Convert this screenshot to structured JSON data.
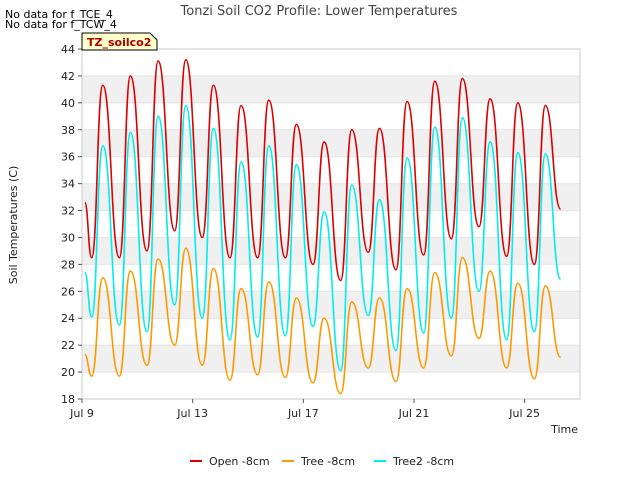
{
  "notes": [
    "No data for f_TCE_4",
    "No data for f_TCW_4"
  ],
  "badge": "TZ_soilco2",
  "chart_data": {
    "type": "line",
    "title": "Tonzi Soil CO2 Profile: Lower Temperatures",
    "xlabel": "Time",
    "ylabel": "Soil Temperatures (C)",
    "ylim": [
      18,
      44
    ],
    "xlim": [
      0,
      18
    ],
    "y_ticks": [
      18,
      20,
      22,
      24,
      26,
      28,
      30,
      32,
      34,
      36,
      38,
      40,
      42,
      44
    ],
    "x_ticks": [
      {
        "x": 0,
        "label": "Jul 9"
      },
      {
        "x": 4,
        "label": "Jul 13"
      },
      {
        "x": 8,
        "label": "Jul 17"
      },
      {
        "x": 12,
        "label": "Jul 21"
      },
      {
        "x": 16,
        "label": "Jul 25"
      }
    ],
    "grid": "horizontal bands",
    "legend_position": "bottom",
    "x": [
      0.1,
      0.35,
      0.75,
      1.35,
      1.75,
      2.35,
      2.75,
      3.35,
      3.75,
      4.35,
      4.75,
      5.35,
      5.75,
      6.35,
      6.75,
      7.35,
      7.75,
      8.35,
      8.75,
      9.35,
      9.75,
      10.35,
      10.75,
      11.35,
      11.75,
      12.35,
      12.75,
      13.35,
      13.75,
      14.35,
      14.75,
      15.35,
      15.75,
      16.35,
      16.75,
      17.3
    ],
    "series": [
      {
        "name": "Open -8cm",
        "color": "#dd0000",
        "values": [
          32.6,
          28.5,
          41.3,
          28.5,
          42.0,
          29.0,
          43.1,
          30.5,
          43.2,
          30.0,
          41.3,
          28.5,
          39.8,
          28.5,
          40.2,
          28.5,
          38.4,
          28.0,
          37.1,
          26.8,
          38.0,
          28.9,
          38.1,
          27.6,
          40.1,
          28.7,
          41.6,
          29.9,
          41.8,
          30.8,
          40.3,
          28.6,
          40.0,
          28.0,
          39.8,
          32.1
        ]
      },
      {
        "name": "Tree -8cm",
        "color": "#ff9900",
        "values": [
          21.3,
          19.7,
          27.0,
          19.7,
          27.5,
          20.5,
          28.4,
          22.0,
          29.2,
          20.5,
          27.7,
          19.4,
          26.2,
          19.8,
          26.7,
          19.6,
          25.5,
          19.2,
          24.0,
          18.4,
          25.2,
          20.3,
          25.5,
          19.3,
          26.2,
          20.3,
          27.4,
          21.2,
          28.5,
          22.5,
          27.5,
          20.3,
          26.6,
          19.5,
          26.4,
          21.1
        ]
      },
      {
        "name": "Tree2 -8cm",
        "color": "#00eeee",
        "values": [
          27.4,
          24.1,
          36.8,
          23.5,
          37.8,
          23.0,
          39.0,
          25.0,
          39.8,
          24.0,
          38.1,
          22.4,
          35.6,
          22.6,
          36.8,
          22.7,
          35.4,
          23.4,
          31.9,
          20.1,
          33.9,
          24.2,
          32.8,
          21.6,
          35.9,
          22.9,
          38.2,
          24.0,
          38.9,
          26.0,
          37.1,
          22.4,
          36.3,
          23.0,
          36.2,
          26.9
        ]
      }
    ]
  }
}
